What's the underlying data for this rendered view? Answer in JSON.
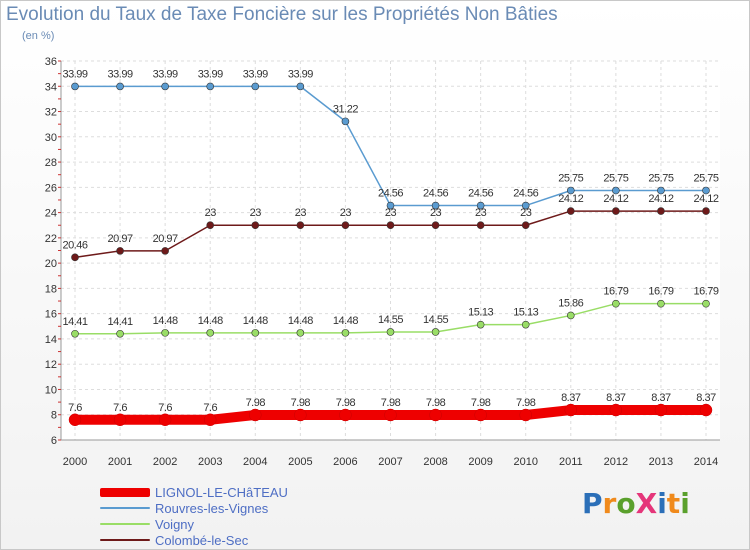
{
  "page": {
    "title": "Evolution du Taux de Taxe Foncière sur les Propriétés Non Bâties",
    "subtitle": "(en %)",
    "logo": "ProXiti"
  },
  "chart_data": {
    "type": "line",
    "title": "Evolution du Taux de Taxe Foncière sur les Propriétés Non Bâties",
    "ylabel": "(en %)",
    "xlabel": "",
    "ylim": [
      6,
      36
    ],
    "yticks": [
      6,
      8,
      10,
      12,
      14,
      16,
      18,
      20,
      22,
      24,
      26,
      28,
      30,
      32,
      34,
      36
    ],
    "grid": true,
    "legend_position": "bottom-left",
    "x": [
      "2000",
      "2001",
      "2002",
      "2003",
      "2004",
      "2005",
      "2006",
      "2007",
      "2008",
      "2009",
      "2010",
      "2011",
      "2012",
      "2013",
      "2014"
    ],
    "series": [
      {
        "name": "LIGNOL-LE-CHâTEAU",
        "color": "#ee0000",
        "values": [
          7.6,
          7.6,
          7.6,
          7.6,
          7.98,
          7.98,
          7.98,
          7.98,
          7.98,
          7.98,
          7.98,
          8.37,
          8.37,
          8.37,
          8.37
        ],
        "labels": [
          "7.6",
          "7.6",
          "7.6",
          "7.6",
          "7.98",
          "7.98",
          "7.98",
          "7.98",
          "7.98",
          "7.98",
          "7.98",
          "8.37",
          "8.37",
          "8.37",
          "8.37"
        ]
      },
      {
        "name": "Rouvres-les-Vignes",
        "color": "#5a9bd0",
        "values": [
          33.99,
          33.99,
          33.99,
          33.99,
          33.99,
          33.99,
          31.22,
          24.56,
          24.56,
          24.56,
          24.56,
          25.75,
          25.75,
          25.75,
          25.75
        ],
        "labels": [
          "33.99",
          "33.99",
          "33.99",
          "33.99",
          "33.99",
          "33.99",
          "31.22",
          "24.56",
          "24.56",
          "24.56",
          "24.56",
          "25.75",
          "25.75",
          "25.75",
          "25.75"
        ]
      },
      {
        "name": "Voigny",
        "color": "#99dd66",
        "values": [
          14.41,
          14.41,
          14.48,
          14.48,
          14.48,
          14.48,
          14.48,
          14.55,
          14.55,
          15.13,
          15.13,
          15.86,
          16.79,
          16.79,
          16.79
        ],
        "labels": [
          "14.41",
          "14.41",
          "14.48",
          "14.48",
          "14.48",
          "14.48",
          "14.48",
          "14.55",
          "14.55",
          "15.13",
          "15.13",
          "15.86",
          "16.79",
          "16.79",
          "16.79"
        ]
      },
      {
        "name": "Colombé-le-Sec",
        "color": "#6e1a1a",
        "values": [
          20.46,
          20.97,
          20.97,
          23,
          23,
          23,
          23,
          23,
          23,
          23,
          23,
          24.12,
          24.12,
          24.12,
          24.12
        ],
        "labels": [
          "20.46",
          "20.97",
          "20.97",
          "23",
          "23",
          "23",
          "23",
          "23",
          "23",
          "23",
          "23",
          "24.12",
          "24.12",
          "24.12",
          "24.12"
        ]
      }
    ]
  }
}
